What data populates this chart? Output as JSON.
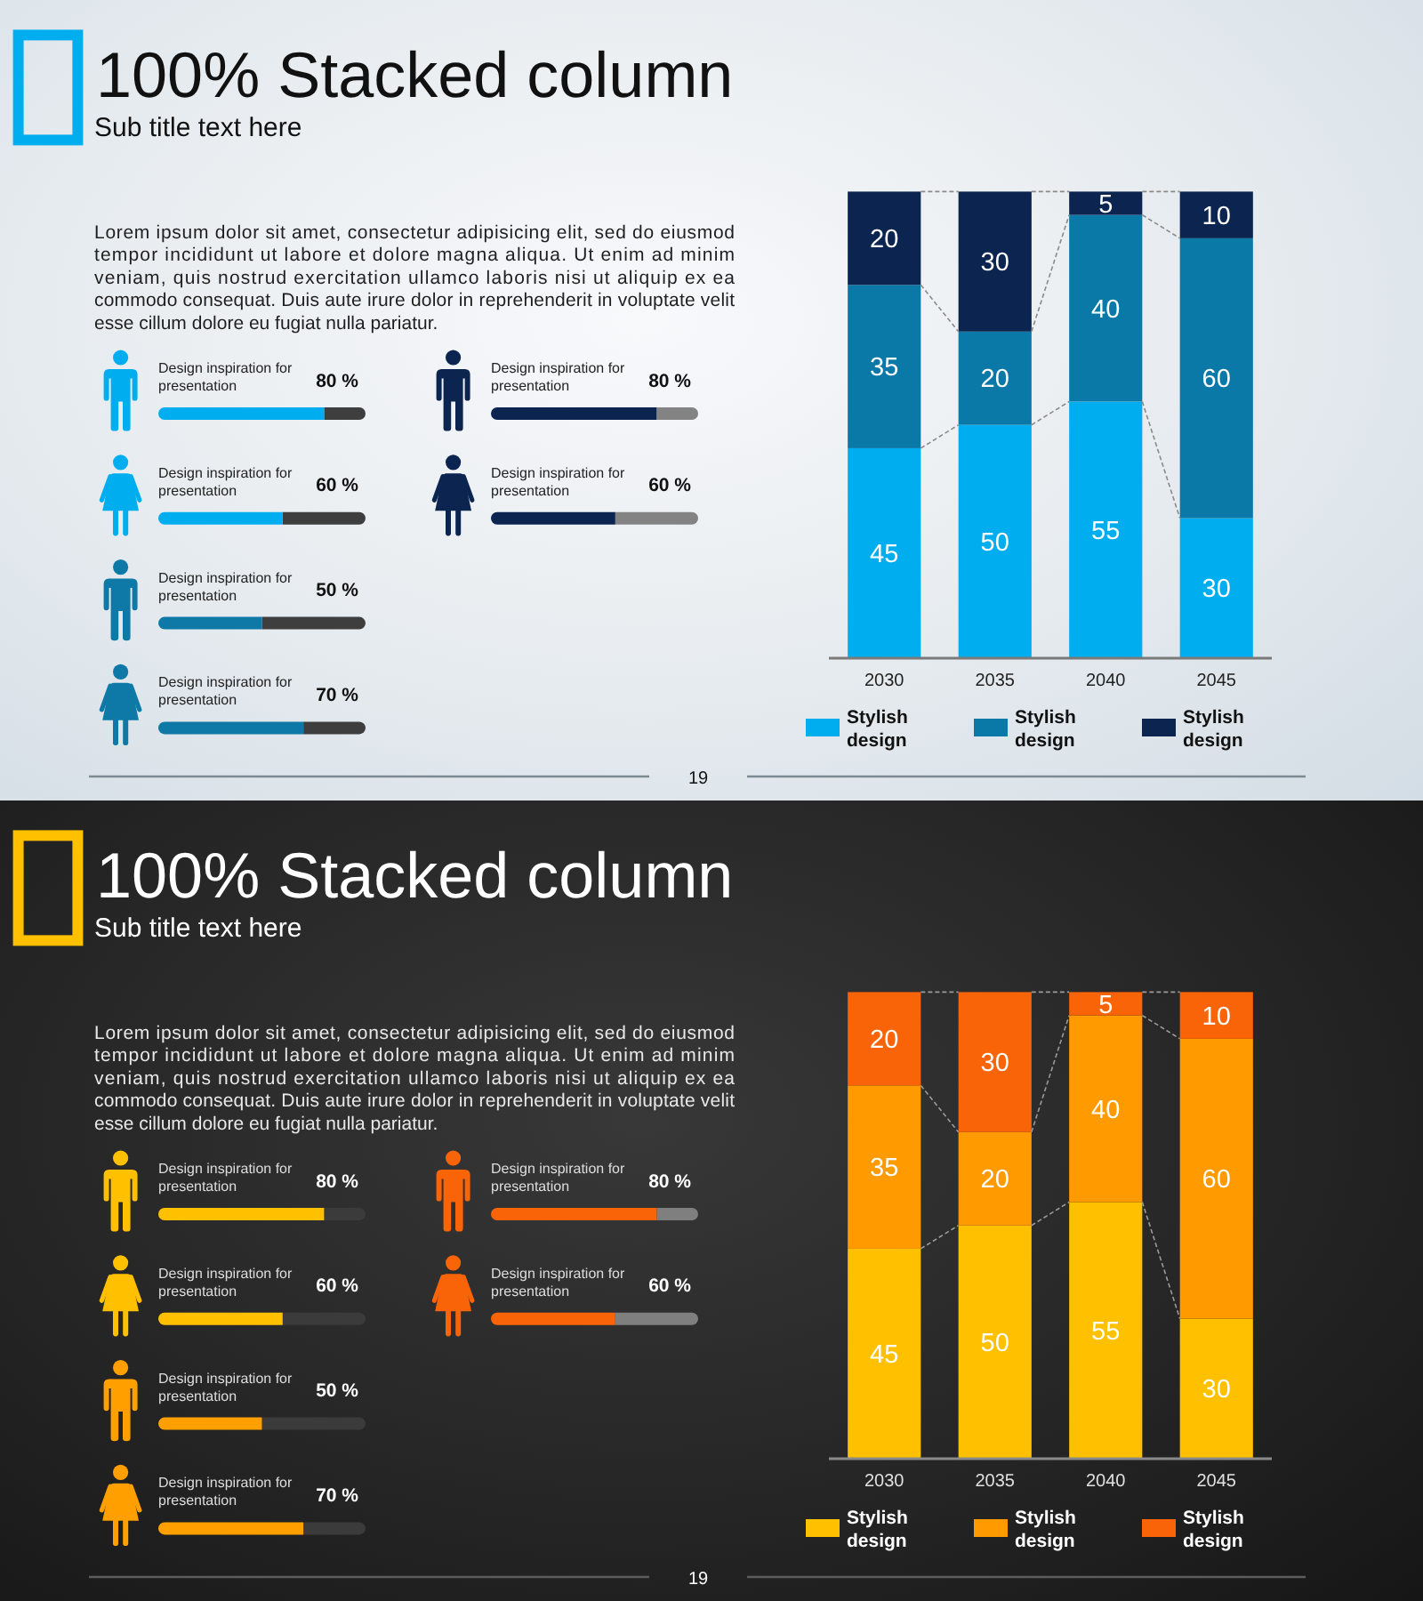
{
  "chart_data": [
    {
      "type": "bar",
      "orientation": "horizontal",
      "title": "100% Stacked column",
      "subtitle": "Sub title text here",
      "annotations": [
        "Lorem ipsum dolor sit amet, consectetur adipisicing elit, sed do eiusmod tempor incididunt ut labore et dolore magna aliqua. Ut enim ad minim veniam, quis nostrud exercitation ullamco laboris nisi ut aliquip ex ea commodo consequat. Duis aute irure dolor in reprehenderit in voluptate velit esse cillum dolore eu fugiat nulla pariatur.",
        "19"
      ],
      "categories": [
        "Design inspiration for presentation",
        "Design inspiration for presentation",
        "Design inspiration for presentation",
        "Design inspiration for presentation"
      ],
      "values": [
        80,
        60,
        50,
        70
      ],
      "colors": [
        "#00aeef",
        "#00aeef",
        "#0e79a7",
        "#0e79a7"
      ],
      "value_labels": [
        "80 %",
        "60 %",
        "50 %",
        "70 %"
      ],
      "xlim": [
        0,
        100
      ]
    },
    {
      "type": "bar",
      "orientation": "horizontal",
      "categories": [
        "Design inspiration for presentation",
        "Design inspiration for presentation"
      ],
      "values": [
        80,
        60
      ],
      "colors": [
        "#0b2550",
        "#0b2550"
      ],
      "value_labels": [
        "80 %",
        "60 %"
      ],
      "xlim": [
        0,
        100
      ]
    },
    {
      "type": "bar",
      "stacked": true,
      "categories": [
        "2030",
        "2035",
        "2040",
        "2045"
      ],
      "series": [
        {
          "name": "Stylish design",
          "color": "#00aeef",
          "values": [
            45,
            50,
            55,
            30
          ]
        },
        {
          "name": "Stylish design",
          "color": "#0b79a8",
          "values": [
            35,
            20,
            40,
            60
          ]
        },
        {
          "name": "Stylish design",
          "color": "#0b2550",
          "values": [
            20,
            30,
            5,
            10
          ]
        }
      ],
      "ylim": [
        0,
        100
      ],
      "data_labels": true,
      "legend": "bottom"
    },
    {
      "type": "bar",
      "orientation": "horizontal",
      "title": "100% Stacked column",
      "subtitle": "Sub title text here",
      "annotations": [
        "Lorem ipsum dolor sit amet, consectetur adipisicing elit, sed do eiusmod tempor incididunt ut labore et dolore magna aliqua. Ut enim ad minim veniam, quis nostrud exercitation ullamco laboris nisi ut aliquip ex ea commodo consequat. Duis aute irure dolor in reprehenderit in voluptate velit esse cillum dolore eu fugiat nulla pariatur.",
        "19"
      ],
      "categories": [
        "Design inspiration for presentation",
        "Design inspiration for presentation",
        "Design inspiration for presentation",
        "Design inspiration for presentation"
      ],
      "values": [
        80,
        60,
        50,
        70
      ],
      "colors": [
        "#ffc000",
        "#ffc000",
        "#ffa000",
        "#ffa000"
      ],
      "value_labels": [
        "80 %",
        "60 %",
        "50 %",
        "70 %"
      ],
      "xlim": [
        0,
        100
      ]
    },
    {
      "type": "bar",
      "orientation": "horizontal",
      "categories": [
        "Design inspiration for presentation",
        "Design inspiration for presentation"
      ],
      "values": [
        80,
        60
      ],
      "colors": [
        "#fa6408",
        "#fa6408"
      ],
      "value_labels": [
        "80 %",
        "60 %"
      ],
      "xlim": [
        0,
        100
      ]
    },
    {
      "type": "bar",
      "stacked": true,
      "categories": [
        "2030",
        "2035",
        "2040",
        "2045"
      ],
      "series": [
        {
          "name": "Stylish design",
          "color": "#ffc000",
          "values": [
            45,
            50,
            55,
            30
          ]
        },
        {
          "name": "Stylish design",
          "color": "#ff9a00",
          "values": [
            35,
            20,
            40,
            60
          ]
        },
        {
          "name": "Stylish design",
          "color": "#fa6408",
          "values": [
            20,
            30,
            5,
            10
          ]
        }
      ],
      "ylim": [
        0,
        100
      ],
      "data_labels": true,
      "legend": "bottom"
    }
  ]
}
